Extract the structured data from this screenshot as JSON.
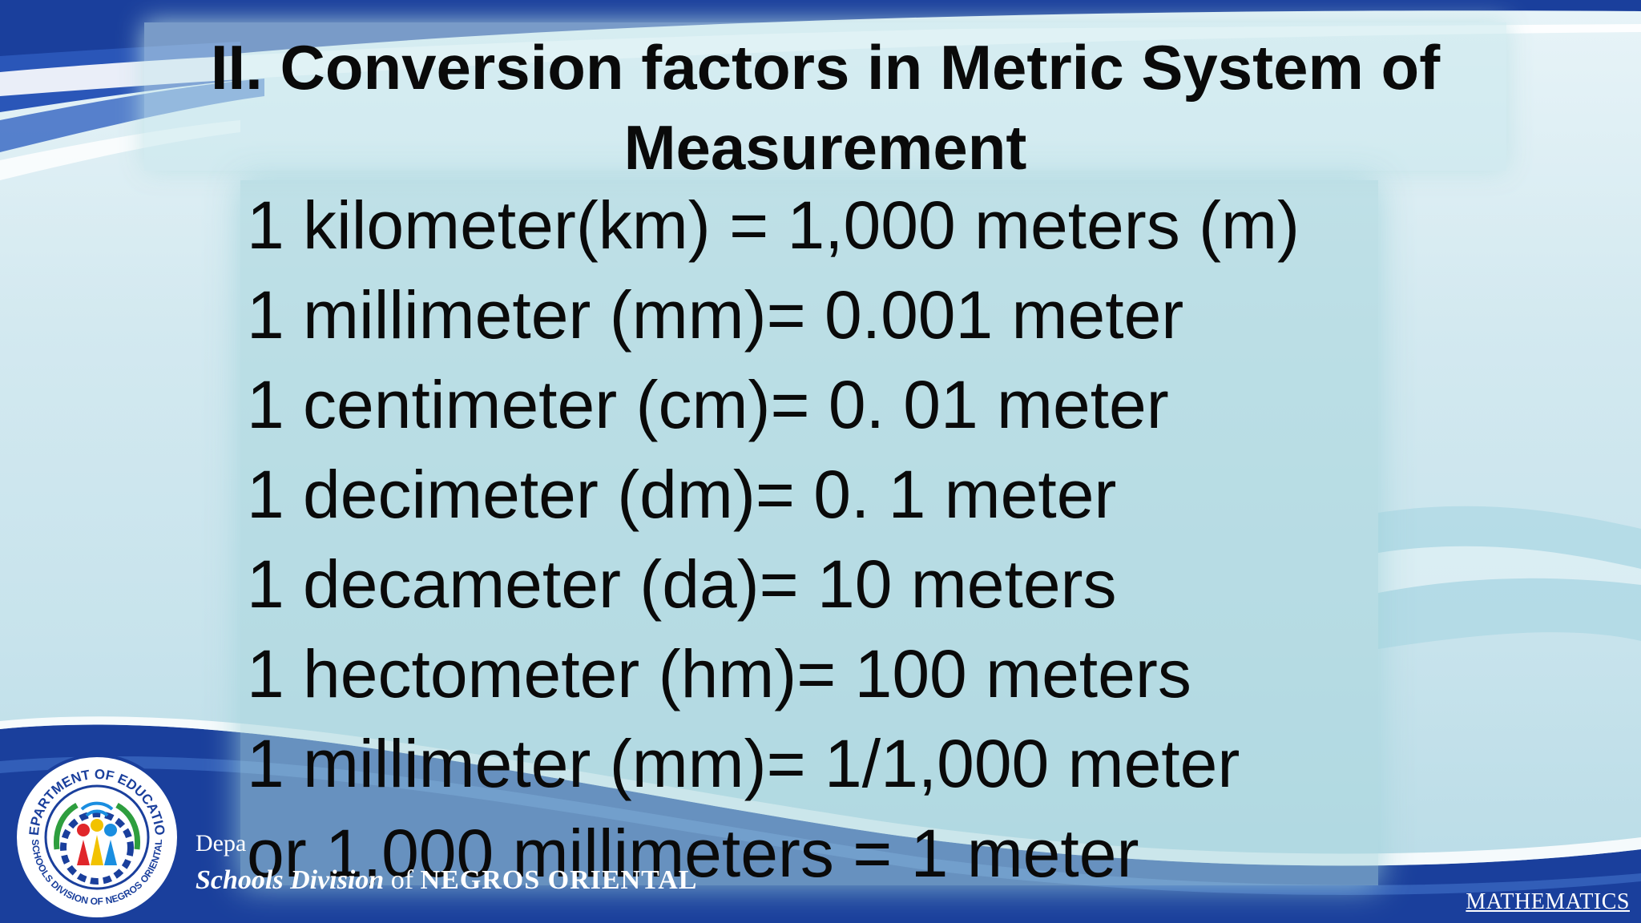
{
  "slide": {
    "title": "II. Conversion factors in Metric System of Measurement",
    "conversions": [
      "1 kilometer(km) = 1,000 meters (m)",
      "1 millimeter (mm)= 0.001 meter",
      "1 centimeter (cm)= 0. 01 meter",
      "1 decimeter (dm)= 0. 1 meter",
      "1 decameter (da)= 10 meters",
      "1 hectometer (hm)= 100 meters",
      "1 millimeter (mm)= 1/1,000 meter",
      "or 1,000 millimeters = 1 meter"
    ]
  },
  "footer": {
    "dept_text": "Depa",
    "division_script": "Schools Division",
    "division_of": " of ",
    "division_name": "NEGROS ORIENTAL",
    "subject": "MATHEMATICS"
  },
  "logo": {
    "top_text": "DEPARTMENT OF EDUCATION",
    "bottom_text": "SCHOOLS DIVISION OF NEGROS ORIENTAL"
  },
  "colors": {
    "background": "#d3e9f0",
    "footer_blue": "#1a3f9c",
    "swoosh_light": "#ffffff",
    "text": "#0a0a0a"
  }
}
